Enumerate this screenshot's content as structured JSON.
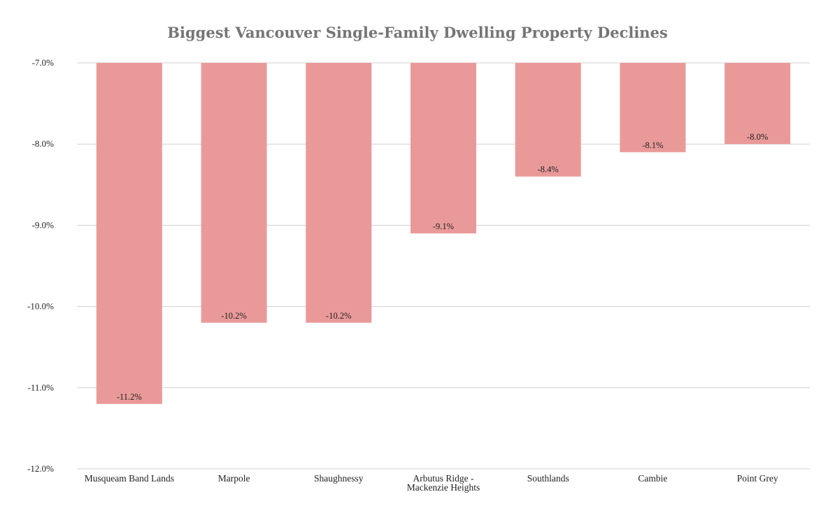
{
  "chart_data": {
    "type": "bar",
    "title": "Biggest Vancouver Single-Family Dwelling Property Declines",
    "xlabel": "",
    "ylabel": "",
    "categories": [
      [
        "Musqueam Band Lands"
      ],
      [
        "Marpole"
      ],
      [
        "Shaughnessy"
      ],
      [
        "Arbutus Ridge -",
        "Mackenzie Heights"
      ],
      [
        "Southlands"
      ],
      [
        "Cambie"
      ],
      [
        "Point Grey"
      ]
    ],
    "values": [
      -11.2,
      -10.2,
      -10.2,
      -9.1,
      -8.4,
      -8.1,
      -8.0
    ],
    "data_labels": [
      "-11.2%",
      "-10.2%",
      "-10.2%",
      "-9.1%",
      "-8.4%",
      "-8.1%",
      "-8.0%"
    ],
    "ylim": [
      -12.0,
      -7.0
    ],
    "yticks": [
      -7.0,
      -8.0,
      -9.0,
      -10.0,
      -11.0,
      -12.0
    ],
    "ytick_labels": [
      "-7.0%",
      "-8.0%",
      "-9.0%",
      "-10.0%",
      "-11.0%",
      "-12.0%"
    ],
    "grid": true,
    "bar_color": "#ea9999",
    "legend": "none"
  }
}
